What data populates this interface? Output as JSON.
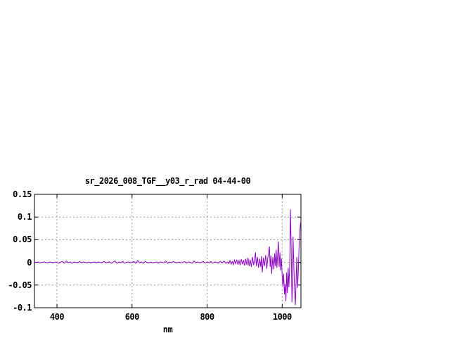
{
  "window": {
    "background": "#ffffff"
  },
  "chart_data": {
    "type": "line",
    "title": "sr_2026_008_TGF__y03_r_rad 04-44-00",
    "xlabel": "nm",
    "ylabel": "",
    "xlim": [
      340,
      1050
    ],
    "ylim": [
      -0.1,
      0.15
    ],
    "grid": true,
    "legend": "none",
    "colors": {
      "line": "#9400d3",
      "grid": "#9b9b9b",
      "border": "#000000",
      "text": "#000000"
    },
    "x_ticks": [
      {
        "label": "400",
        "value": 400
      },
      {
        "label": "600",
        "value": 600
      },
      {
        "label": "800",
        "value": 800
      },
      {
        "label": "1000",
        "value": 1000
      }
    ],
    "y_ticks": [
      {
        "label": "0.15",
        "value": 0.15
      },
      {
        "label": "0.1",
        "value": 0.1
      },
      {
        "label": "0.05",
        "value": 0.05
      },
      {
        "label": "0",
        "value": 0
      },
      {
        "label": "-0.05",
        "value": -0.05
      },
      {
        "label": "-0.1",
        "value": -0.1
      }
    ],
    "series": [
      {
        "name": "sr_2026_008_TGF__y03_r_rad",
        "points": [
          [
            340,
            0.001
          ],
          [
            345,
            0
          ],
          [
            350,
            0.001
          ],
          [
            355,
            -0.001
          ],
          [
            360,
            0
          ],
          [
            365,
            0.001
          ],
          [
            370,
            0
          ],
          [
            375,
            -0.001
          ],
          [
            380,
            0.001
          ],
          [
            385,
            0
          ],
          [
            390,
            -0.001
          ],
          [
            395,
            0.001
          ],
          [
            400,
            0
          ],
          [
            405,
            -0.002
          ],
          [
            410,
            0.001
          ],
          [
            415,
            0.002
          ],
          [
            420,
            -0.002
          ],
          [
            425,
            0.003
          ],
          [
            430,
            -0.001
          ],
          [
            435,
            0.001
          ],
          [
            440,
            -0.002
          ],
          [
            445,
            0.001
          ],
          [
            450,
            0
          ],
          [
            455,
            -0.001
          ],
          [
            460,
            0.002
          ],
          [
            465,
            -0.001
          ],
          [
            470,
            0.001
          ],
          [
            475,
            0
          ],
          [
            480,
            -0.001
          ],
          [
            485,
            0.001
          ],
          [
            490,
            -0.001
          ],
          [
            495,
            0
          ],
          [
            500,
            0.001
          ],
          [
            505,
            -0.001
          ],
          [
            510,
            0.001
          ],
          [
            515,
            0
          ],
          [
            520,
            -0.001
          ],
          [
            525,
            0.002
          ],
          [
            530,
            -0.001
          ],
          [
            535,
            0
          ],
          [
            540,
            0.001
          ],
          [
            545,
            -0.002
          ],
          [
            550,
            0.001
          ],
          [
            555,
            0.003
          ],
          [
            560,
            -0.002
          ],
          [
            565,
            0.001
          ],
          [
            570,
            -0.001
          ],
          [
            575,
            0.002
          ],
          [
            580,
            -0.002
          ],
          [
            585,
            0
          ],
          [
            590,
            0.001
          ],
          [
            595,
            -0.001
          ],
          [
            600,
            0
          ],
          [
            605,
            0.002
          ],
          [
            610,
            -0.002
          ],
          [
            615,
            0.004
          ],
          [
            620,
            -0.001
          ],
          [
            625,
            0.001
          ],
          [
            630,
            -0.002
          ],
          [
            635,
            0.002
          ],
          [
            640,
            0
          ],
          [
            645,
            -0.001
          ],
          [
            650,
            0.001
          ],
          [
            655,
            -0.001
          ],
          [
            660,
            0
          ],
          [
            665,
            0.001
          ],
          [
            670,
            -0.002
          ],
          [
            675,
            0.001
          ],
          [
            680,
            0
          ],
          [
            685,
            -0.001
          ],
          [
            690,
            0.003
          ],
          [
            695,
            -0.002
          ],
          [
            700,
            0.001
          ],
          [
            705,
            -0.001
          ],
          [
            710,
            0.002
          ],
          [
            715,
            0
          ],
          [
            720,
            -0.001
          ],
          [
            725,
            0.001
          ],
          [
            730,
            -0.001
          ],
          [
            735,
            0
          ],
          [
            740,
            0.002
          ],
          [
            745,
            -0.002
          ],
          [
            750,
            0.001
          ],
          [
            755,
            0
          ],
          [
            760,
            -0.002
          ],
          [
            765,
            0.003
          ],
          [
            770,
            -0.001
          ],
          [
            775,
            0.001
          ],
          [
            780,
            -0.001
          ],
          [
            785,
            0
          ],
          [
            790,
            0.002
          ],
          [
            795,
            -0.002
          ],
          [
            800,
            0.001
          ],
          [
            805,
            -0.001
          ],
          [
            810,
            0.002
          ],
          [
            815,
            -0.002
          ],
          [
            820,
            0.001
          ],
          [
            825,
            0
          ],
          [
            830,
            -0.002
          ],
          [
            835,
            0.002
          ],
          [
            840,
            -0.001
          ],
          [
            845,
            0.003
          ],
          [
            850,
            -0.002
          ],
          [
            855,
            0.001
          ],
          [
            858,
            -0.003
          ],
          [
            861,
            0.004
          ],
          [
            864,
            -0.004
          ],
          [
            867,
            0.002
          ],
          [
            870,
            -0.005
          ],
          [
            873,
            0.005
          ],
          [
            876,
            -0.003
          ],
          [
            879,
            0.006
          ],
          [
            882,
            -0.005
          ],
          [
            885,
            0.004
          ],
          [
            888,
            -0.006
          ],
          [
            891,
            0.007
          ],
          [
            894,
            -0.004
          ],
          [
            897,
            0.005
          ],
          [
            900,
            -0.007
          ],
          [
            903,
            0.008
          ],
          [
            906,
            -0.006
          ],
          [
            909,
            0.01
          ],
          [
            912,
            -0.008
          ],
          [
            915,
            0.006
          ],
          [
            918,
            -0.01
          ],
          [
            921,
            0.012
          ],
          [
            924,
            -0.006
          ],
          [
            927,
            0.01
          ],
          [
            929,
            0.022
          ],
          [
            931,
            -0.008
          ],
          [
            934,
            0.012
          ],
          [
            937,
            -0.012
          ],
          [
            940,
            0.008
          ],
          [
            943,
            -0.01
          ],
          [
            945,
            0.014
          ],
          [
            947,
            -0.022
          ],
          [
            950,
            0.01
          ],
          [
            953,
            -0.008
          ],
          [
            956,
            0.016
          ],
          [
            959,
            -0.014
          ],
          [
            962,
            0.012
          ],
          [
            964,
            0.02
          ],
          [
            966,
            0.035
          ],
          [
            968,
            -0.01
          ],
          [
            970,
            0.015
          ],
          [
            972,
            -0.025
          ],
          [
            975,
            0.012
          ],
          [
            978,
            -0.015
          ],
          [
            980,
            0.02
          ],
          [
            982,
            -0.008
          ],
          [
            984,
            0.028
          ],
          [
            986,
            -0.012
          ],
          [
            988,
            0.018
          ],
          [
            990,
            0.046
          ],
          [
            992,
            -0.01
          ],
          [
            994,
            0.022
          ],
          [
            996,
            -0.018
          ],
          [
            998,
            0.008
          ],
          [
            1000,
            -0.03
          ],
          [
            1002,
            -0.052
          ],
          [
            1004,
            -0.025
          ],
          [
            1006,
            -0.07
          ],
          [
            1008,
            -0.048
          ],
          [
            1010,
            -0.085
          ],
          [
            1012,
            -0.022
          ],
          [
            1014,
            -0.068
          ],
          [
            1016,
            -0.012
          ],
          [
            1018,
            -0.055
          ],
          [
            1020,
            -0.008
          ],
          [
            1021,
            0.045
          ],
          [
            1022,
            0.117
          ],
          [
            1024,
            0.03
          ],
          [
            1026,
            -0.088
          ],
          [
            1028,
            -0.035
          ],
          [
            1029,
            0.057
          ],
          [
            1031,
            -0.008
          ],
          [
            1033,
            -0.06
          ],
          [
            1035,
            -0.094
          ],
          [
            1037,
            -0.042
          ],
          [
            1039,
            0.012
          ],
          [
            1041,
            -0.056
          ],
          [
            1043,
            -0.018
          ],
          [
            1045,
            0.032
          ],
          [
            1047,
            0.068
          ],
          [
            1049,
            0.088
          ],
          [
            1050,
            0.09
          ]
        ]
      }
    ]
  }
}
